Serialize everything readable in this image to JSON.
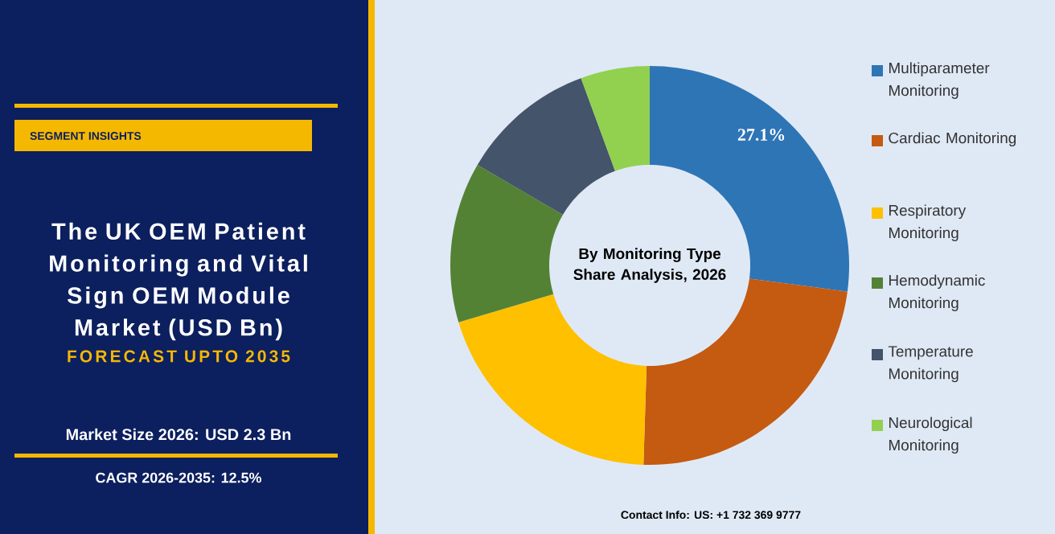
{
  "chart_data": {
    "type": "donut",
    "title": "The UK OEM Patient Monitoring and Vital Sign OEM Module Market (USD Bn)",
    "subtitle": "FORECAST UPTO 2035",
    "categories": [
      "Multiparameter Monitoring",
      "Cardiac Monitoring",
      "Respiratory Monitoring",
      "Hemodynamic Monitoring",
      "Temperature Monitoring",
      "Neurological Monitoring"
    ],
    "values": [
      27.1,
      23.4,
      19.9,
      13.0,
      11.0,
      5.6
    ],
    "colors": [
      "#2e75b6",
      "#c55a11",
      "#ffc000",
      "#548235",
      "#44546a",
      "#92d050"
    ],
    "value_labels": [
      "27.1%",
      null,
      null,
      null,
      null,
      null
    ],
    "legend": "right",
    "annotations": [
      "SEGMENT INSIGHTS",
      "By Monitoring Type Share Analysis, 2026",
      "Market Size 2026: USD 2.3 Bn",
      "CAGR 2026-2035: 12.5%",
      "Contact Info: US: +1 732 369 9777"
    ]
  }
}
